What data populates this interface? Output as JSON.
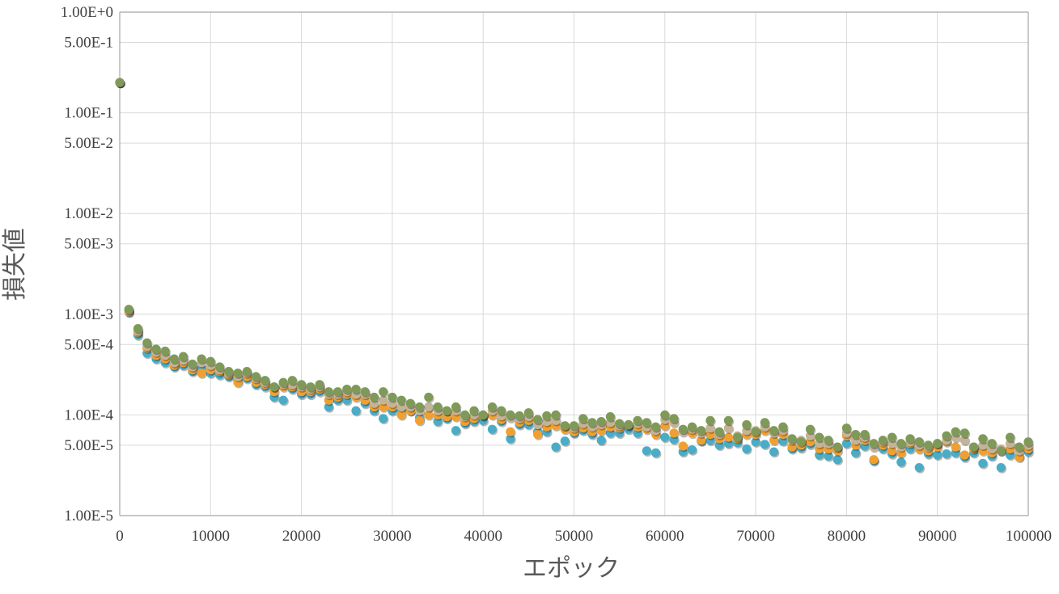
{
  "chart_data": {
    "type": "scatter",
    "xlabel": "エポック",
    "ylabel": "損失値",
    "xlim": [
      0,
      100000
    ],
    "ylim": [
      1e-05,
      1
    ],
    "y_scale": "log",
    "grid": true,
    "legend": "none",
    "x_ticks": [
      0,
      10000,
      20000,
      30000,
      40000,
      50000,
      60000,
      70000,
      80000,
      90000,
      100000
    ],
    "x_tick_labels": [
      "0",
      "10000",
      "20000",
      "30000",
      "40000",
      "50000",
      "60000",
      "70000",
      "80000",
      "90000",
      "100000"
    ],
    "y_ticks": [
      1,
      0.5,
      0.1,
      0.05,
      0.01,
      0.005,
      0.001,
      0.0005,
      0.0001,
      5e-05,
      1e-05
    ],
    "y_tick_labels": [
      "1.00E+0",
      "5.00E-1",
      "1.00E-1",
      "5.00E-2",
      "1.00E-2",
      "5.00E-3",
      "1.00E-3",
      "5.00E-4",
      "1.00E-4",
      "5.00E-5",
      "1.00E-5"
    ],
    "x": [
      0,
      1000,
      2000,
      3000,
      4000,
      5000,
      6000,
      7000,
      8000,
      9000,
      10000,
      11000,
      12000,
      13000,
      14000,
      15000,
      16000,
      17000,
      18000,
      19000,
      20000,
      21000,
      22000,
      23000,
      24000,
      25000,
      26000,
      27000,
      28000,
      29000,
      30000,
      31000,
      32000,
      33000,
      34000,
      35000,
      36000,
      37000,
      38000,
      39000,
      40000,
      41000,
      42000,
      43000,
      44000,
      45000,
      46000,
      47000,
      48000,
      49000,
      50000,
      51000,
      52000,
      53000,
      54000,
      55000,
      56000,
      57000,
      58000,
      59000,
      60000,
      61000,
      62000,
      63000,
      64000,
      65000,
      66000,
      67000,
      68000,
      69000,
      70000,
      71000,
      72000,
      73000,
      74000,
      75000,
      76000,
      77000,
      78000,
      79000,
      80000,
      81000,
      82000,
      83000,
      84000,
      85000,
      86000,
      87000,
      88000,
      89000,
      90000,
      91000,
      92000,
      93000,
      94000,
      95000,
      96000,
      97000,
      98000,
      99000,
      100000
    ],
    "series": [
      {
        "color": "#4bacc6",
        "values": [
          0.2,
          0.00105,
          0.00062,
          0.00041,
          0.00036,
          0.00033,
          0.0003,
          0.00031,
          0.00027,
          0.00029,
          0.00026,
          0.00025,
          0.00024,
          0.00022,
          0.00023,
          0.0002,
          0.00019,
          0.00015,
          0.00014,
          0.00018,
          0.00016,
          0.00016,
          0.00017,
          0.00012,
          0.00014,
          0.00014,
          0.00011,
          0.00013,
          0.00011,
          9.2e-05,
          0.00011,
          0.00011,
          0.00011,
          9.4e-05,
          0.00012,
          8.6e-05,
          9.2e-05,
          7e-05,
          8.2e-05,
          8.6e-05,
          8.8e-05,
          7.2e-05,
          8.6e-05,
          5.8e-05,
          8e-05,
          8e-05,
          6.8e-05,
          6.8e-05,
          4.8e-05,
          5.5e-05,
          6.6e-05,
          7e-05,
          6.4e-05,
          5.6e-05,
          6.6e-05,
          6.6e-05,
          7.2e-05,
          6.6e-05,
          4.4e-05,
          4.2e-05,
          6e-05,
          5.7e-05,
          4.3e-05,
          4.5e-05,
          5.5e-05,
          5.6e-05,
          5e-05,
          5.2e-05,
          5.3e-05,
          4.6e-05,
          5.4e-05,
          5.1e-05,
          4.3e-05,
          5.5e-05,
          4.6e-05,
          4.7e-05,
          5.1e-05,
          4e-05,
          3.9e-05,
          3.6e-05,
          5.2e-05,
          4.2e-05,
          4.9e-05,
          3.5e-05,
          4.6e-05,
          4.1e-05,
          3.4e-05,
          4.6e-05,
          3e-05,
          4.1e-05,
          4e-05,
          4.1e-05,
          4.2e-05,
          3.8e-05,
          4.2e-05,
          3.3e-05,
          3.9e-05,
          3e-05,
          4e-05,
          3.9e-05,
          4.3e-05
        ]
      },
      {
        "color": "#f0a030",
        "values": [
          0.2,
          0.00106,
          0.00066,
          0.00046,
          0.00039,
          0.00036,
          0.00031,
          0.00033,
          0.00028,
          0.00026,
          0.00028,
          0.00027,
          0.00025,
          0.00021,
          0.00024,
          0.00021,
          0.0002,
          0.00017,
          0.00019,
          0.00019,
          0.00017,
          0.00017,
          0.00018,
          0.00014,
          0.00015,
          0.00016,
          0.00015,
          0.00014,
          0.00012,
          0.00012,
          0.00012,
          0.0001,
          0.00011,
          8.8e-05,
          0.0001,
          0.0001,
          9.6e-05,
          9.6e-05,
          8.6e-05,
          9.2e-05,
          9.8e-05,
          0.0001,
          9e-05,
          6.8e-05,
          8.4e-05,
          8.8e-05,
          6.4e-05,
          7.6e-05,
          7.8e-05,
          7.2e-05,
          6.8e-05,
          7.4e-05,
          6.8e-05,
          7e-05,
          7.6e-05,
          7.4e-05,
          7.8e-05,
          7.6e-05,
          7.2e-05,
          6.4e-05,
          7.8e-05,
          6.6e-05,
          4.9e-05,
          6.6e-05,
          5.6e-05,
          6.4e-05,
          5.8e-05,
          6e-05,
          5.8e-05,
          6.4e-05,
          6.4e-05,
          7e-05,
          5.6e-05,
          6.4e-05,
          4.8e-05,
          5e-05,
          5.4e-05,
          4.6e-05,
          4.6e-05,
          4.4e-05,
          6.2e-05,
          5e-05,
          5.6e-05,
          3.6e-05,
          5e-05,
          4.4e-05,
          4.2e-05,
          5.2e-05,
          4.6e-05,
          4.4e-05,
          4.8e-05,
          5.4e-05,
          4.8e-05,
          4e-05,
          4.6e-05,
          4.4e-05,
          4.2e-05,
          4.4e-05,
          4.6e-05,
          3.8e-05,
          4.6e-05
        ]
      },
      {
        "color": "#c4b496",
        "values": [
          0.2,
          0.0011,
          0.00068,
          0.00048,
          0.00042,
          0.00039,
          0.00033,
          0.00035,
          0.0003,
          0.00033,
          0.00031,
          0.00028,
          0.00026,
          0.00024,
          0.00026,
          0.00023,
          0.00021,
          0.00019,
          0.0002,
          0.0002,
          0.00019,
          0.00018,
          0.00019,
          0.00016,
          0.00016,
          0.00017,
          0.00016,
          0.00016,
          0.00013,
          0.00014,
          0.00013,
          0.00012,
          0.00012,
          0.00011,
          0.00012,
          0.00011,
          0.00011,
          0.00011,
          9.6e-05,
          0.0001,
          0.0001,
          0.00011,
          9.8e-05,
          9.4e-05,
          9.2e-05,
          9.6e-05,
          8e-05,
          8.6e-05,
          8.8e-05,
          7.8e-05,
          7.4e-05,
          8.2e-05,
          7.6e-05,
          8e-05,
          8.4e-05,
          7.8e-05,
          8e-05,
          8.2e-05,
          7.6e-05,
          7e-05,
          9e-05,
          8.4e-05,
          6.8e-05,
          7.2e-05,
          6.6e-05,
          7.4e-05,
          6.4e-05,
          7.4e-05,
          6.2e-05,
          7e-05,
          7e-05,
          7.6e-05,
          6.6e-05,
          7e-05,
          5.6e-05,
          5.6e-05,
          6.2e-05,
          5.2e-05,
          5.2e-05,
          4.8e-05,
          6.6e-05,
          5.6e-05,
          6e-05,
          4.8e-05,
          5.4e-05,
          5.2e-05,
          4.8e-05,
          5.4e-05,
          5e-05,
          4.8e-05,
          5.2e-05,
          5.6e-05,
          6e-05,
          5.6e-05,
          4.8e-05,
          5e-05,
          4.6e-05,
          4.6e-05,
          5.2e-05,
          4.4e-05,
          5e-05
        ]
      },
      {
        "color": "#7f9a58",
        "values": [
          0.2,
          0.00112,
          0.00072,
          0.00052,
          0.00045,
          0.00043,
          0.00036,
          0.00038,
          0.00032,
          0.00036,
          0.00034,
          0.0003,
          0.00027,
          0.00026,
          0.00027,
          0.00024,
          0.00022,
          0.00019,
          0.00021,
          0.00022,
          0.0002,
          0.00019,
          0.0002,
          0.00017,
          0.00017,
          0.00018,
          0.00018,
          0.00017,
          0.00015,
          0.00017,
          0.00015,
          0.00014,
          0.00013,
          0.00012,
          0.00015,
          0.00012,
          0.00011,
          0.00012,
          0.0001,
          0.00011,
          0.0001,
          0.00012,
          0.00011,
          0.0001,
          9.8e-05,
          0.000105,
          9e-05,
          9.8e-05,
          0.0001,
          7.8e-05,
          7.8e-05,
          9.2e-05,
          8.4e-05,
          8.6e-05,
          9.6e-05,
          8.2e-05,
          8e-05,
          8.8e-05,
          8.4e-05,
          7.6e-05,
          0.0001,
          9.2e-05,
          7.2e-05,
          7.6e-05,
          7e-05,
          8.8e-05,
          6.8e-05,
          8.8e-05,
          6e-05,
          8e-05,
          6.8e-05,
          8.4e-05,
          7e-05,
          7.6e-05,
          5.8e-05,
          5.4e-05,
          7.2e-05,
          6e-05,
          5.6e-05,
          4.8e-05,
          7.4e-05,
          6.4e-05,
          6.4e-05,
          5.2e-05,
          5.6e-05,
          6e-05,
          5.2e-05,
          5.8e-05,
          5.4e-05,
          5e-05,
          5.2e-05,
          6.2e-05,
          6.8e-05,
          6.6e-05,
          4.8e-05,
          5.8e-05,
          5.2e-05,
          4.4e-05,
          6e-05,
          4.8e-05,
          5.4e-05
        ]
      }
    ]
  }
}
